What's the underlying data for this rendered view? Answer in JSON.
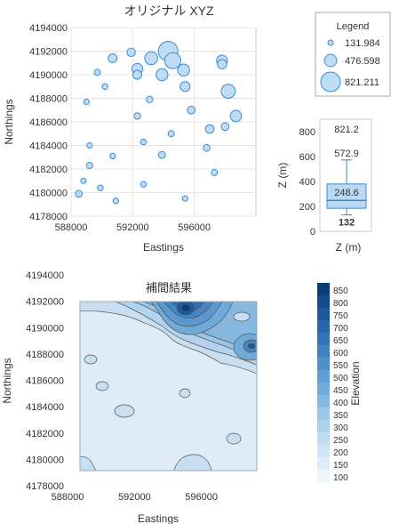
{
  "chart_data": [
    {
      "type": "scatter",
      "title": "オリジナル XYZ",
      "xlabel": "Eastings",
      "ylabel": "Northings",
      "xlim": [
        588000,
        600000
      ],
      "ylim": [
        4178000,
        4194000
      ],
      "xticks": [
        "588000",
        "592000",
        "596000"
      ],
      "yticks": [
        "4178000",
        "4180000",
        "4182000",
        "4184000",
        "4186000",
        "4188000",
        "4190000",
        "4192000",
        "4194000"
      ],
      "grid": true,
      "points": [
        {
          "x": 590700,
          "y": 4191400,
          "z": 300
        },
        {
          "x": 591900,
          "y": 4191900,
          "z": 280
        },
        {
          "x": 592300,
          "y": 4190500,
          "z": 400
        },
        {
          "x": 592300,
          "y": 4190000,
          "z": 300
        },
        {
          "x": 593200,
          "y": 4191400,
          "z": 500
        },
        {
          "x": 593900,
          "y": 4190000,
          "z": 450
        },
        {
          "x": 594300,
          "y": 4192000,
          "z": 821
        },
        {
          "x": 594600,
          "y": 4191200,
          "z": 650
        },
        {
          "x": 595300,
          "y": 4190400,
          "z": 450
        },
        {
          "x": 595400,
          "y": 4189000,
          "z": 350
        },
        {
          "x": 597800,
          "y": 4191200,
          "z": 400
        },
        {
          "x": 597800,
          "y": 4190900,
          "z": 320
        },
        {
          "x": 598200,
          "y": 4188600,
          "z": 550
        },
        {
          "x": 598700,
          "y": 4186500,
          "z": 420
        },
        {
          "x": 598000,
          "y": 4185600,
          "z": 250
        },
        {
          "x": 597000,
          "y": 4185400,
          "z": 290
        },
        {
          "x": 595800,
          "y": 4187000,
          "z": 250
        },
        {
          "x": 596800,
          "y": 4183800,
          "z": 200
        },
        {
          "x": 597300,
          "y": 4181700,
          "z": 170
        },
        {
          "x": 589700,
          "y": 4190200,
          "z": 170
        },
        {
          "x": 590200,
          "y": 4189000,
          "z": 150
        },
        {
          "x": 589000,
          "y": 4187700,
          "z": 140
        },
        {
          "x": 592300,
          "y": 4186500,
          "z": 190
        },
        {
          "x": 593100,
          "y": 4187900,
          "z": 190
        },
        {
          "x": 594500,
          "y": 4185000,
          "z": 170
        },
        {
          "x": 592700,
          "y": 4184300,
          "z": 150
        },
        {
          "x": 593900,
          "y": 4183200,
          "z": 210
        },
        {
          "x": 590700,
          "y": 4183100,
          "z": 145
        },
        {
          "x": 589200,
          "y": 4184000,
          "z": 135
        },
        {
          "x": 589200,
          "y": 4182300,
          "z": 180
        },
        {
          "x": 588800,
          "y": 4181000,
          "z": 135
        },
        {
          "x": 589900,
          "y": 4180400,
          "z": 150
        },
        {
          "x": 588500,
          "y": 4179900,
          "z": 200
        },
        {
          "x": 590900,
          "y": 4179300,
          "z": 140
        },
        {
          "x": 592700,
          "y": 4180700,
          "z": 150
        },
        {
          "x": 595400,
          "y": 4179500,
          "z": 140
        }
      ],
      "legend": {
        "title": "Legend",
        "placement": "top-right",
        "entries": [
          "131.984",
          "476.598",
          "821.211"
        ],
        "entry_values": [
          131.984,
          476.598,
          821.211
        ]
      }
    },
    {
      "type": "box",
      "xlabel": "Z (m)",
      "ylabel": "Z (m)",
      "ylim": [
        0,
        900
      ],
      "yticks": [
        "0",
        "200",
        "400",
        "600",
        "800"
      ],
      "min": 132,
      "q1": 185,
      "median": 248.6,
      "q3": 380,
      "whisker_high": 572.9,
      "max": 821.2,
      "labels": {
        "max": "821.2",
        "whisker_high": "572.9",
        "mean": "248.6",
        "min": "132"
      }
    },
    {
      "type": "heatmap",
      "title": "補間結果",
      "xlabel": "Eastings",
      "ylabel": "Northings",
      "xlim": [
        588000,
        600000
      ],
      "ylim": [
        4178000,
        4194000
      ],
      "xticks": [
        "588000",
        "592000",
        "596000"
      ],
      "yticks": [
        "4178000",
        "4180000",
        "4182000",
        "4184000",
        "4186000",
        "4188000",
        "4190000",
        "4192000",
        "4194000"
      ],
      "colorbar": {
        "label": "Elevation",
        "levels": [
          "850",
          "800",
          "750",
          "700",
          "650",
          "600",
          "550",
          "500",
          "450",
          "400",
          "350",
          "300",
          "250",
          "200",
          "150",
          "100"
        ],
        "colors": [
          "#0b3d7a",
          "#144b8c",
          "#1d5a9c",
          "#2767ab",
          "#3276b8",
          "#3e84c2",
          "#4e92cb",
          "#5f9fd3",
          "#72acda",
          "#86b9e1",
          "#9ac6e7",
          "#add2ec",
          "#bfdcf1",
          "#cfe5f5",
          "#deedf9",
          "#ecf5fc"
        ]
      }
    }
  ]
}
